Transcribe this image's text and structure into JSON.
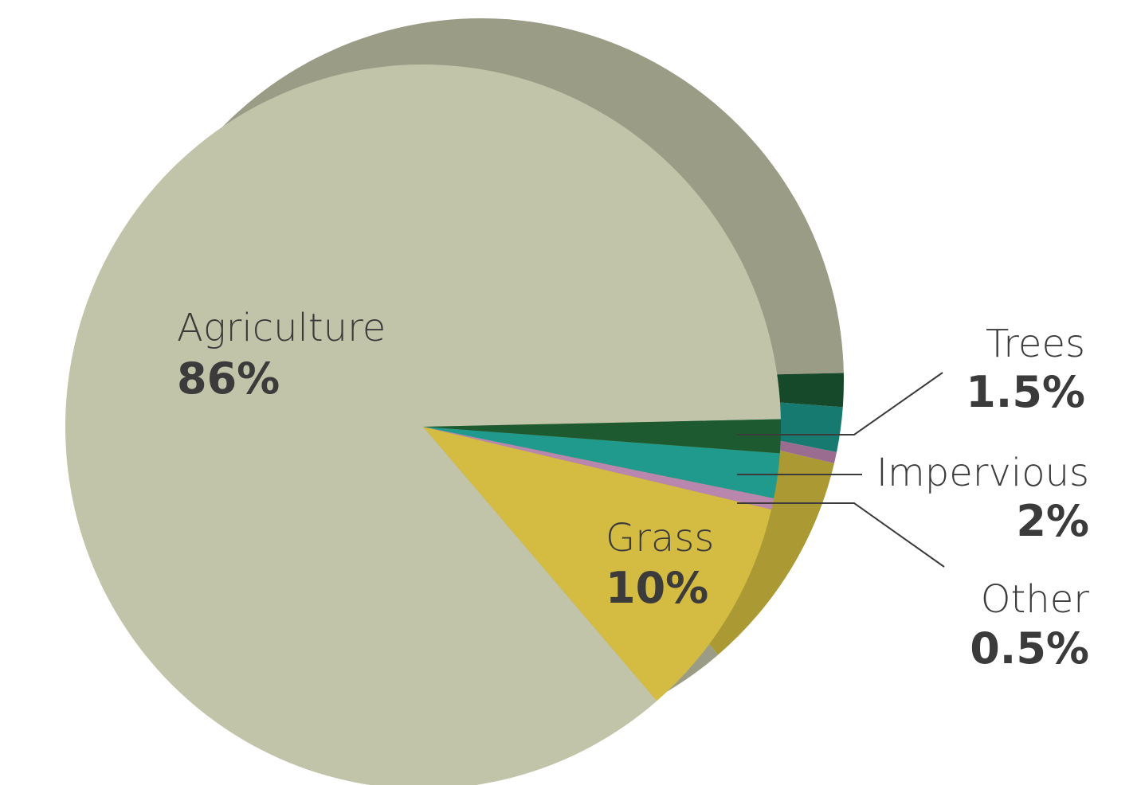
{
  "chart_data": {
    "type": "pie",
    "slices": [
      {
        "label": "Agriculture",
        "value": 86,
        "value_label": "86%",
        "color": "#c2c4a9",
        "side_color": "#9a9c86"
      },
      {
        "label": "Trees",
        "value": 1.5,
        "value_label": "1.5%",
        "color": "#1d5a2f",
        "side_color": "#16482a"
      },
      {
        "label": "Impervious",
        "value": 2,
        "value_label": "2%",
        "color": "#209a8c",
        "side_color": "#167a70"
      },
      {
        "label": "Other",
        "value": 0.5,
        "value_label": "0.5%",
        "color": "#b987ad",
        "side_color": "#9a6d90"
      },
      {
        "label": "Grass",
        "value": 10,
        "value_label": "10%",
        "color": "#d4bb41",
        "side_color": "#ab9933"
      }
    ]
  }
}
